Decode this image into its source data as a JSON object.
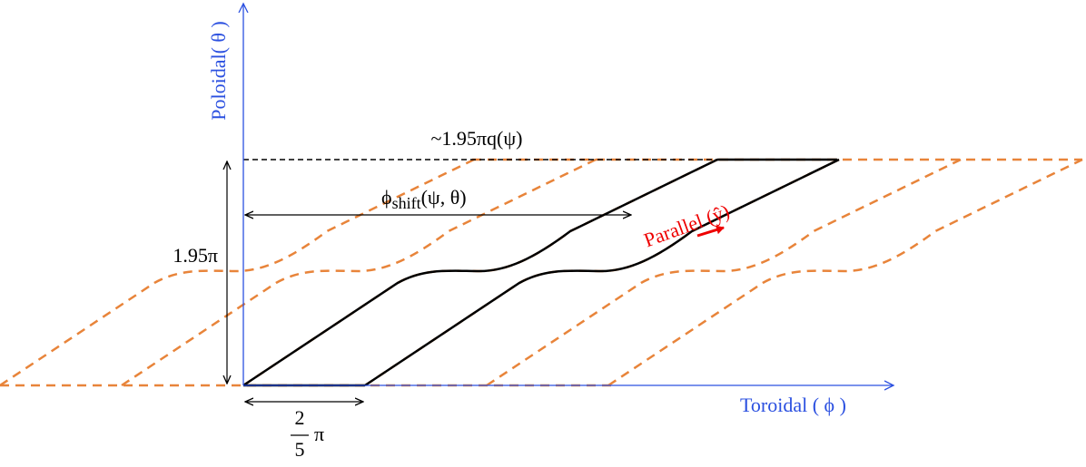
{
  "axes": {
    "y_label": "Poloidal( θ )",
    "x_label": "Toroidal ( ϕ )"
  },
  "annotations": {
    "top_width": "~1.95πq(ψ)",
    "shift": {
      "symbol": "ϕ",
      "subscript": "shift",
      "args": "(ψ, θ)"
    },
    "height": "1.95π",
    "base": {
      "numerator": "2",
      "denominator": "5",
      "symbol": "π"
    },
    "parallel": "Parallel (ŷ)"
  }
}
